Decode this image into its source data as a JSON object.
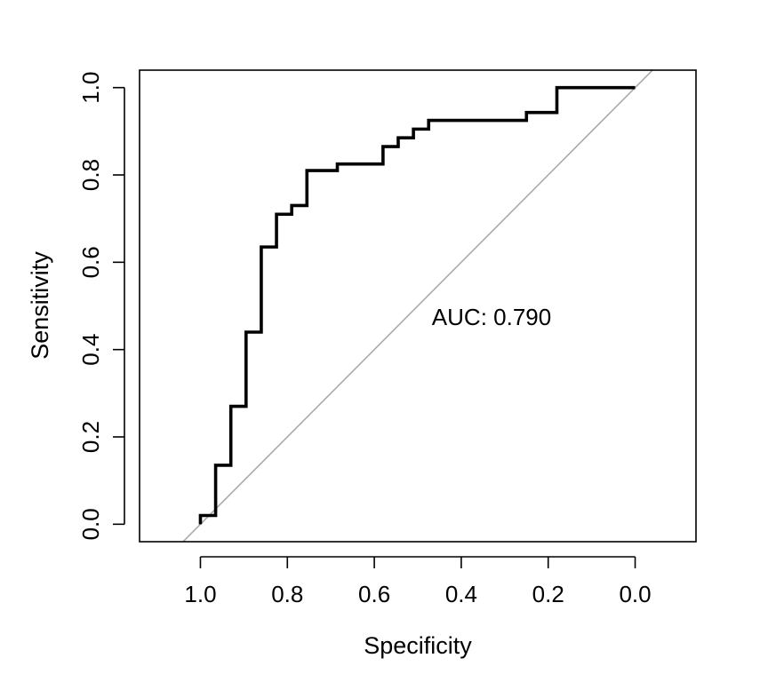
{
  "chart_data": {
    "type": "line",
    "title": "",
    "xlabel": "Specificity",
    "ylabel": "Sensitivity",
    "x_reversed": true,
    "xlim": [
      1.14,
      -0.14
    ],
    "ylim": [
      -0.04,
      1.04
    ],
    "x_ticks": [
      1.0,
      0.8,
      0.6,
      0.4,
      0.2,
      0.0
    ],
    "x_tick_labels": [
      "1.0",
      "0.8",
      "0.6",
      "0.4",
      "0.2",
      "0.0"
    ],
    "y_ticks": [
      0.0,
      0.2,
      0.4,
      0.6,
      0.8,
      1.0
    ],
    "y_tick_labels": [
      "0.0",
      "0.2",
      "0.4",
      "0.6",
      "0.8",
      "1.0"
    ],
    "grid": false,
    "legend": "none",
    "annotation": "AUC: 0.790",
    "series": [
      {
        "style": "step",
        "color": "#000000",
        "points": [
          [
            1.0,
            0.0
          ],
          [
            1.0,
            0.02
          ],
          [
            0.965,
            0.02
          ],
          [
            0.965,
            0.135
          ],
          [
            0.93,
            0.135
          ],
          [
            0.93,
            0.27
          ],
          [
            0.895,
            0.27
          ],
          [
            0.895,
            0.44
          ],
          [
            0.86,
            0.44
          ],
          [
            0.86,
            0.635
          ],
          [
            0.825,
            0.635
          ],
          [
            0.825,
            0.71
          ],
          [
            0.79,
            0.71
          ],
          [
            0.79,
            0.73
          ],
          [
            0.755,
            0.73
          ],
          [
            0.755,
            0.81
          ],
          [
            0.685,
            0.81
          ],
          [
            0.685,
            0.825
          ],
          [
            0.58,
            0.825
          ],
          [
            0.58,
            0.865
          ],
          [
            0.545,
            0.865
          ],
          [
            0.545,
            0.885
          ],
          [
            0.51,
            0.885
          ],
          [
            0.51,
            0.905
          ],
          [
            0.475,
            0.905
          ],
          [
            0.475,
            0.925
          ],
          [
            0.25,
            0.925
          ],
          [
            0.25,
            0.943
          ],
          [
            0.18,
            0.943
          ],
          [
            0.18,
            1.0
          ],
          [
            0.0,
            1.0
          ]
        ]
      }
    ],
    "reference_line": {
      "color": "#aaaaaa",
      "from": [
        1,
        0
      ],
      "to": [
        0,
        1
      ]
    }
  }
}
